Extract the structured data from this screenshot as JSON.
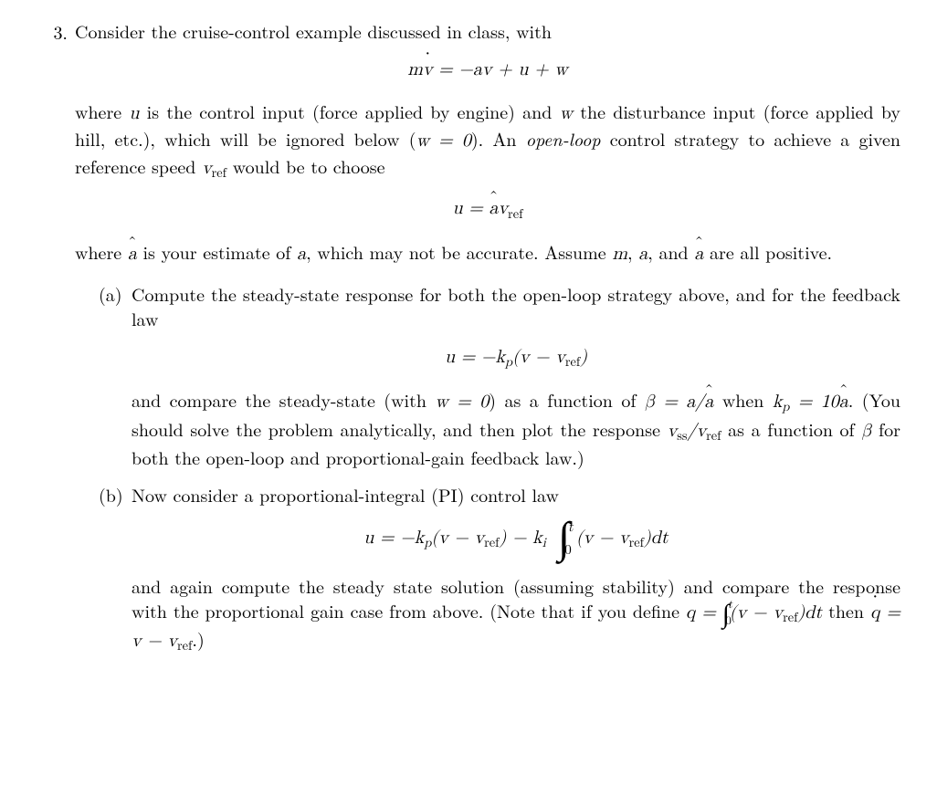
{
  "problem_number": "3.",
  "intro_line": "Consider the cruise-control example discussed in class, with",
  "eq_system_lhs": "m",
  "eq_system_dotvar": "v",
  "eq_system_rhs_1": " = −av + u + w",
  "para_where_1_pre": "where ",
  "var_u": "u",
  "para_where_1_mid1": " is the control input (force applied by engine) and ",
  "var_w": "w",
  "para_where_1_mid2": " the disturbance input (force applied by hill, etc.), which will be ignored below (",
  "w_eq_0": "w = 0",
  "para_where_1_mid3": "). An ",
  "open_loop_it": "open-loop",
  "para_where_1_mid4": " control strategy to achieve a given reference speed ",
  "v_sym": "v",
  "ref_sub": "ref",
  "para_where_1_end": " would be to choose",
  "eq_openloop_lhs": "u = ",
  "eq_openloop_hat": "a",
  "eq_openloop_rhs_v": "v",
  "para_ahat_1": "where ",
  "para_ahat_2": " is your estimate of ",
  "var_a": "a",
  "para_ahat_3": ", which may not be accurate. Assume ",
  "var_m": "m",
  "comma_sp": ", ",
  "and_sp": ", and ",
  "para_ahat_4": " are all positive.",
  "sub_a_label": "(a)",
  "sub_a_intro": "Compute the steady-state response for both the open-loop strategy above, and for the feedback law",
  "eq_feedback_full_pre": "u = −k",
  "k_sub_p": "p",
  "eq_feedback_paren_open": "(v − v",
  "eq_feedback_paren_close": ")",
  "sub_a_mid_1": "and compare the steady-state (with ",
  "sub_a_mid_2": ") as a function of ",
  "beta_sym": "β = a/",
  "sub_a_mid_3": " when ",
  "kp_eq_pre": "k",
  "kp_eq_post": " = 10",
  "sub_a_mid_4": ". (You should solve the problem analytically, and then plot the response ",
  "vss_v": "v",
  "ss_sub": "ss",
  "slash": "/",
  "sub_a_mid_5": " as a function of ",
  "beta_only": "β",
  "sub_a_mid_6": " for both the open-loop and proportional-gain feedback law.)",
  "sub_b_label": "(b)",
  "sub_b_intro": "Now consider a proportional-integral (PI) control law",
  "eq_pi_pre": "u = −k",
  "eq_pi_mid": " − k",
  "k_sub_i": "i",
  "int_upper": "t",
  "int_lower": "0",
  "eq_pi_integrand_open": "(v − v",
  "eq_pi_integrand_close": ")dt",
  "sub_b_tail_1": "and again compute the steady state solution (assuming stability) and compare the response with the proportional gain case from above. (Note that if you define ",
  "q_sym": "q = ",
  "sub_b_tail_2": " then ",
  "q_dot": "q",
  "q_dot_rhs": " = v − v",
  "sub_b_tail_3": ".)",
  "colors": {
    "text": "#000000",
    "background": "#ffffff"
  },
  "fontsize_body_pt": 15,
  "fontsize_eq_pt": 15
}
